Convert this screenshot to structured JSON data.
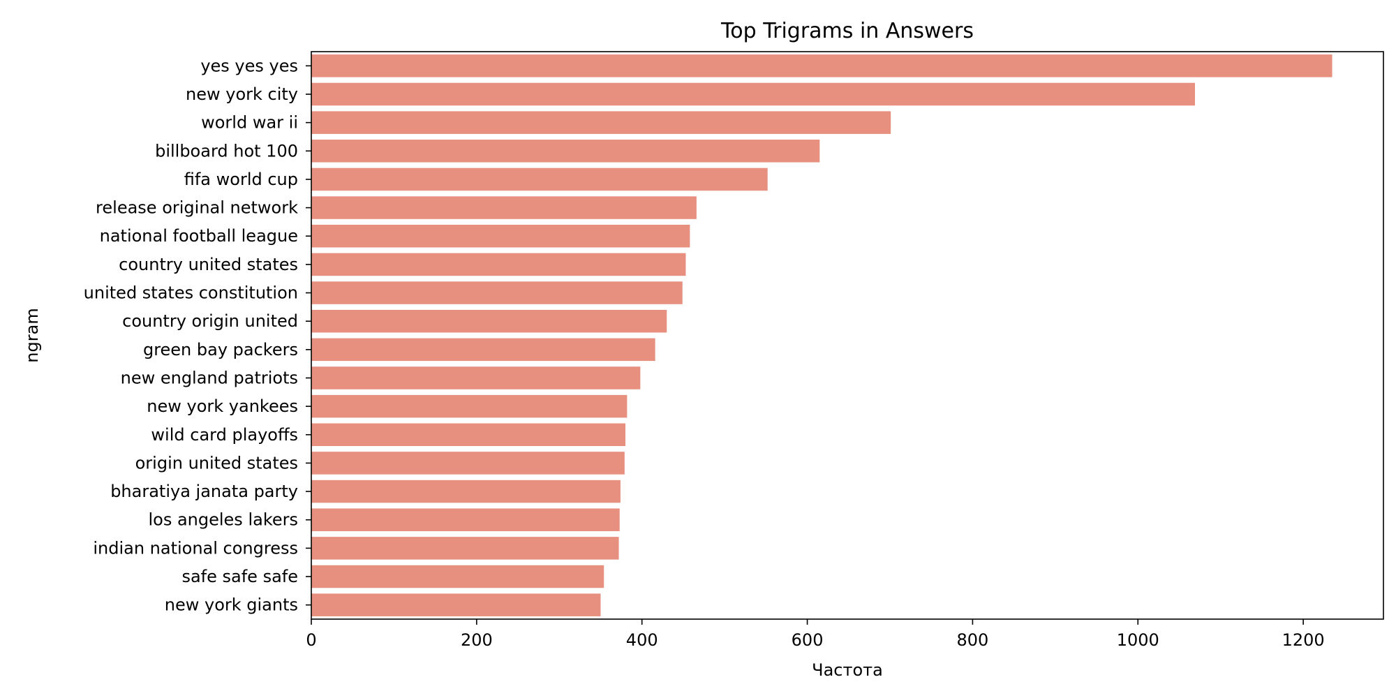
{
  "chart_data": {
    "type": "bar",
    "orientation": "horizontal",
    "title": "Top Trigrams in Answers",
    "xlabel": "Частота",
    "ylabel": "ngram",
    "xlim": [
      0,
      1297
    ],
    "xticks": [
      0,
      200,
      400,
      600,
      800,
      1000,
      1200
    ],
    "grid": false,
    "bar_color": "#e8907f",
    "categories": [
      "yes yes yes",
      "new york city",
      "world war ii",
      "billboard hot 100",
      "fifa world cup",
      "release original network",
      "national football league",
      "country united states",
      "united states constitution",
      "country origin united",
      "green bay packers",
      "new england patriots",
      "new york yankees",
      "wild card playoffs",
      "origin united states",
      "bharatiya janata party",
      "los angeles lakers",
      "indian national congress",
      "safe safe safe",
      "new york giants"
    ],
    "values": [
      1235,
      1069,
      701,
      615,
      552,
      466,
      458,
      453,
      449,
      430,
      416,
      398,
      382,
      380,
      379,
      374,
      373,
      372,
      354,
      350
    ]
  }
}
